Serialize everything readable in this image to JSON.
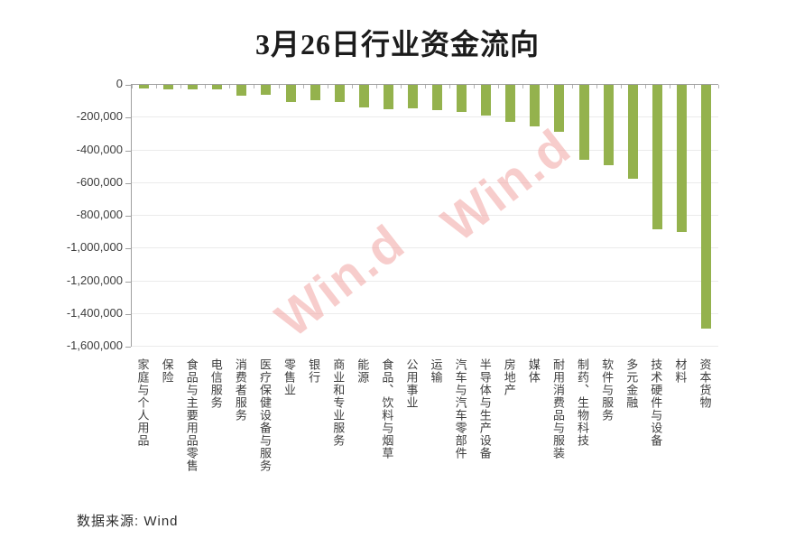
{
  "title": "3月26日行业资金流向",
  "footer": {
    "source_label": "数据来源: Wind"
  },
  "watermark": {
    "text": "Win.d",
    "color": "#f2a6a4"
  },
  "colors": {
    "bar": "#94b24d",
    "grid": "#ebebeb",
    "axis": "#9f9f9f"
  },
  "chart_data": {
    "type": "bar",
    "title": "3月26日行业资金流向",
    "categories": [
      "家庭与个人用品",
      "保险",
      "食品与主要用品零售",
      "电信服务",
      "消费者服务",
      "医疗保健设备与服务",
      "零售业",
      "银行",
      "商业和专业服务",
      "能源",
      "食品、饮料与烟草",
      "公用事业",
      "运输",
      "汽车与汽车零部件",
      "半导体与生产设备",
      "房地产",
      "媒体",
      "耐用消费品与服装",
      "制药、生物科技",
      "软件与服务",
      "多元金融",
      "技术硬件与设备",
      "材料",
      "资本货物"
    ],
    "values": [
      -20000,
      -25000,
      -28000,
      -30000,
      -65000,
      -62000,
      -105000,
      -95000,
      -105000,
      -135000,
      -150000,
      -145000,
      -152000,
      -165000,
      -190000,
      -225000,
      -255000,
      -285000,
      -460000,
      -490000,
      -575000,
      -885000,
      -900000,
      -1490000
    ],
    "xlabel": "",
    "ylabel": "",
    "ylim": [
      -1600000,
      0
    ],
    "ytick_interval": 200000,
    "ytick_labels": [
      "0",
      "-200,000",
      "-400,000",
      "-600,000",
      "-800,000",
      "-1,000,000",
      "-1,200,000",
      "-1,400,000",
      "-1,600,000"
    ],
    "grid": true,
    "legend": false,
    "bar_color": "#94b24d"
  }
}
